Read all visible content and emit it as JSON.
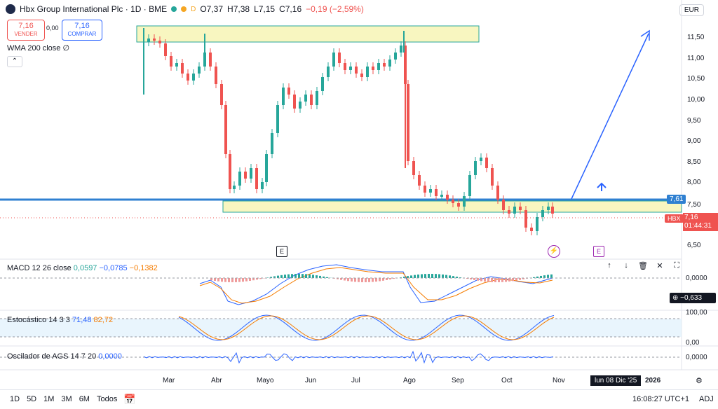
{
  "header": {
    "title": "Hbx Group International Plc · 1D · BME",
    "d_badge": "D",
    "open": "O7,37",
    "high": "H7,38",
    "low": "L7,15",
    "close": "C7,16",
    "change": "−0,19 (−2,59%)",
    "currency": "EUR"
  },
  "trade": {
    "sell_price": "7,16",
    "sell_label": "VENDER",
    "spread": "0,00",
    "buy_price": "7,16",
    "buy_label": "COMPRAR"
  },
  "indicators": {
    "wma": "WMA 200 close  ∅",
    "macd_label": "MACD 12 26 close",
    "macd_v1": "0,0597",
    "macd_v2": "−0,0785",
    "macd_v3": "−0,1382",
    "stoch_label": "Estocástico 14 3 3",
    "stoch_v1": "71,48",
    "stoch_v2": "82,72",
    "ags_label": "Oscilador de AGS 14 7 20",
    "ags_v": "0,0000"
  },
  "price_axis": [
    "11,50",
    "11,00",
    "10,50",
    "10,00",
    "9,50",
    "9,00",
    "8,50",
    "8,00",
    "7,50",
    "6,50"
  ],
  "price_tags": {
    "line_level": "7,61",
    "symbol": "HBX",
    "last": "7,16",
    "countdown": "01:44:31"
  },
  "macd_axis": {
    "zero": "0,0000",
    "readout": "−0,633"
  },
  "stoch_axis": {
    "top": "100,00",
    "bottom": "0,00"
  },
  "ags_axis": {
    "zero": "0,0000"
  },
  "time_axis": [
    "Mar",
    "Abr",
    "Mayo",
    "Jun",
    "Jul",
    "Ago",
    "Sep",
    "Oct",
    "Nov",
    "2026"
  ],
  "crosshair_date": "lun 08 Dic '25",
  "markers": {
    "e1": "E",
    "e2": "E"
  },
  "bottom": {
    "ranges": [
      "1D",
      "5D",
      "1M",
      "3M",
      "6M",
      "Todos"
    ],
    "clock": "16:08:27 UTC+1",
    "adj": "ADJ"
  },
  "colors": {
    "up": "#26a69a",
    "down": "#ef5350",
    "blue": "#2962ff",
    "zone": "#f8f6c0"
  }
}
